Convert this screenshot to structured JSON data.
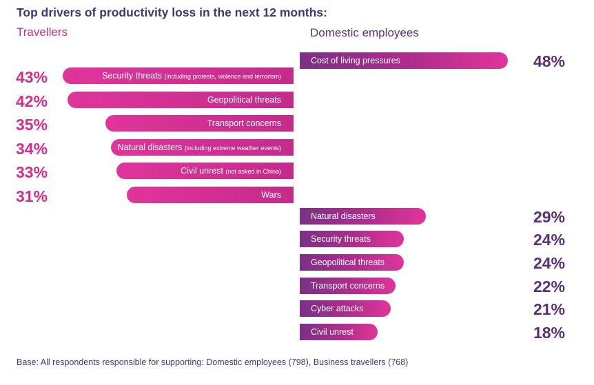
{
  "title": "Top drivers of productivity loss in the next 12 months:",
  "base_note": "Base: All respondents responsible for supporting: Domestic employees (798), Business travellers (768)",
  "colors": {
    "travellers": "#e0359a",
    "domestic": "#7b3086",
    "title": "#3c3a78"
  },
  "chart_data": [
    {
      "type": "bar",
      "title": "Travellers",
      "categories": [
        "Security threats",
        "Geopolitical threats",
        "Transport concerns",
        "Natural disasters",
        "Civil unrest",
        "Wars"
      ],
      "notes": [
        "(including protests, violence and terrorism)",
        "",
        "",
        "(including extreme weather events)",
        "(not asked in China)",
        ""
      ],
      "values": [
        43,
        42,
        35,
        34,
        33,
        31
      ],
      "labels": [
        "43%",
        "42%",
        "35%",
        "34%",
        "33%",
        "31%"
      ],
      "unit": "%"
    },
    {
      "type": "bar",
      "title": "Domestic employees",
      "categories": [
        "Cost of living pressures",
        "Natural disasters",
        "Security threats",
        "Geopolitical threats",
        "Transport concerns",
        "Cyber attacks",
        "Civil unrest"
      ],
      "values": [
        48,
        29,
        24,
        24,
        22,
        21,
        18
      ],
      "labels": [
        "48%",
        "29%",
        "24%",
        "24%",
        "22%",
        "21%",
        "18%"
      ],
      "unit": "%"
    }
  ]
}
